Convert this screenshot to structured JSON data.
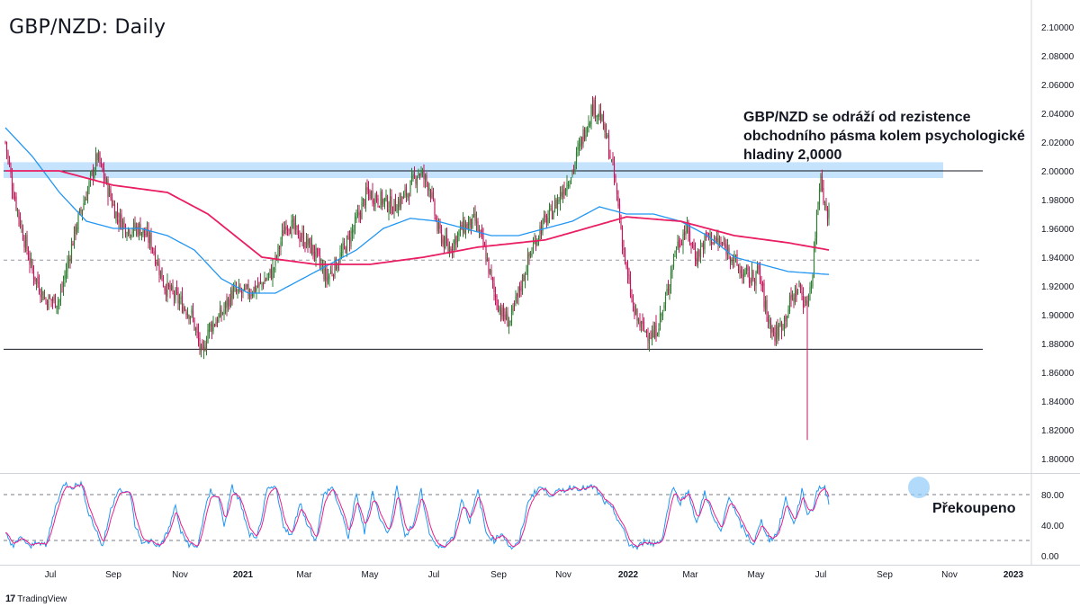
{
  "title": "GBP/NZD: Daily",
  "annotation": {
    "lines": [
      "GBP/NZD se odráží od rezistence",
      "obchodního pásma kolem psychologické",
      "hladiny 2,0000"
    ]
  },
  "stoch_annotation": "Překoupeno",
  "branding": {
    "logo": "17",
    "text": "TradingView"
  },
  "colors": {
    "up": "#2e7d32",
    "down": "#c2185b",
    "ma_fast": "#2196f3",
    "ma_slow": "#e91e63",
    "zone": "#bbdefb",
    "stoch_k": "#2196f3",
    "stoch_d": "#e91e8c",
    "highlight": "#90caf9"
  },
  "chart_data": {
    "type": "candlestick",
    "symbol": "GBP/NZD",
    "timeframe": "Daily",
    "x_labels": [
      "Jul",
      "Sep",
      "Nov",
      "2021",
      "Mar",
      "May",
      "Jul",
      "Sep",
      "Nov",
      "2022",
      "Mar",
      "May",
      "Jul",
      "Sep",
      "Nov",
      "2023"
    ],
    "y_ticks": [
      "2.10000",
      "2.08000",
      "2.06000",
      "2.04000",
      "2.02000",
      "2.00000",
      "1.98000",
      "1.96000",
      "1.94000",
      "1.92000",
      "1.90000",
      "1.88000",
      "1.86000",
      "1.84000",
      "1.82000",
      "1.80000"
    ],
    "ylim": [
      1.79,
      2.11
    ],
    "resistance_zone": [
      1.995,
      2.006
    ],
    "resistance_line": 2.0,
    "support_line": 1.876,
    "midline": 1.938,
    "price_anchors": [
      [
        0,
        2.02
      ],
      [
        5,
        1.99
      ],
      [
        12,
        1.96
      ],
      [
        20,
        1.93
      ],
      [
        30,
        1.91
      ],
      [
        40,
        1.91
      ],
      [
        52,
        1.96
      ],
      [
        62,
        1.99
      ],
      [
        68,
        2.01
      ],
      [
        75,
        1.99
      ],
      [
        82,
        1.97
      ],
      [
        90,
        1.96
      ],
      [
        100,
        1.96
      ],
      [
        108,
        1.95
      ],
      [
        118,
        1.92
      ],
      [
        128,
        1.91
      ],
      [
        138,
        1.9
      ],
      [
        146,
        1.87
      ],
      [
        150,
        1.89
      ],
      [
        160,
        1.9
      ],
      [
        168,
        1.915
      ],
      [
        178,
        1.915
      ],
      [
        188,
        1.92
      ],
      [
        198,
        1.93
      ],
      [
        208,
        1.965
      ],
      [
        218,
        1.955
      ],
      [
        228,
        1.945
      ],
      [
        238,
        1.925
      ],
      [
        248,
        1.94
      ],
      [
        258,
        1.96
      ],
      [
        268,
        1.985
      ],
      [
        278,
        1.98
      ],
      [
        288,
        1.975
      ],
      [
        298,
        1.985
      ],
      [
        306,
        2.0
      ],
      [
        314,
        1.99
      ],
      [
        320,
        1.96
      ],
      [
        328,
        1.945
      ],
      [
        338,
        1.96
      ],
      [
        348,
        1.965
      ],
      [
        355,
        1.945
      ],
      [
        362,
        1.915
      ],
      [
        368,
        1.9
      ],
      [
        374,
        1.895
      ],
      [
        380,
        1.915
      ],
      [
        388,
        1.94
      ],
      [
        396,
        1.96
      ],
      [
        404,
        1.97
      ],
      [
        412,
        1.985
      ],
      [
        420,
        2.0
      ],
      [
        428,
        2.025
      ],
      [
        435,
        2.045
      ],
      [
        440,
        2.04
      ],
      [
        446,
        2.02
      ],
      [
        452,
        1.99
      ],
      [
        456,
        1.96
      ],
      [
        460,
        1.93
      ],
      [
        466,
        1.9
      ],
      [
        472,
        1.89
      ],
      [
        480,
        1.885
      ],
      [
        488,
        1.905
      ],
      [
        496,
        1.945
      ],
      [
        504,
        1.96
      ],
      [
        512,
        1.94
      ],
      [
        520,
        1.955
      ],
      [
        528,
        1.95
      ],
      [
        536,
        1.945
      ],
      [
        544,
        1.93
      ],
      [
        552,
        1.925
      ],
      [
        558,
        1.93
      ],
      [
        564,
        1.9
      ],
      [
        570,
        1.885
      ],
      [
        576,
        1.895
      ],
      [
        582,
        1.91
      ],
      [
        588,
        1.92
      ],
      [
        593,
        1.905
      ],
      [
        598,
        1.93
      ],
      [
        601,
        1.97
      ],
      [
        604,
        2.0
      ],
      [
        607,
        1.975
      ],
      [
        610,
        1.97
      ]
    ],
    "spike_low": {
      "bar": 594,
      "value": 1.813
    },
    "ma_fast_anchors": [
      [
        0,
        2.03
      ],
      [
        20,
        2.01
      ],
      [
        40,
        1.985
      ],
      [
        60,
        1.965
      ],
      [
        80,
        1.96
      ],
      [
        100,
        1.96
      ],
      [
        120,
        1.955
      ],
      [
        140,
        1.945
      ],
      [
        160,
        1.925
      ],
      [
        180,
        1.915
      ],
      [
        200,
        1.915
      ],
      [
        220,
        1.925
      ],
      [
        240,
        1.935
      ],
      [
        260,
        1.945
      ],
      [
        280,
        1.96
      ],
      [
        300,
        1.967
      ],
      [
        320,
        1.965
      ],
      [
        340,
        1.96
      ],
      [
        360,
        1.955
      ],
      [
        380,
        1.955
      ],
      [
        400,
        1.96
      ],
      [
        420,
        1.965
      ],
      [
        440,
        1.975
      ],
      [
        460,
        1.97
      ],
      [
        480,
        1.97
      ],
      [
        500,
        1.965
      ],
      [
        520,
        1.955
      ],
      [
        540,
        1.94
      ],
      [
        560,
        1.935
      ],
      [
        580,
        1.93
      ],
      [
        610,
        1.928
      ]
    ],
    "ma_slow_anchors": [
      [
        0,
        2.0
      ],
      [
        40,
        2.0
      ],
      [
        80,
        1.99
      ],
      [
        120,
        1.985
      ],
      [
        150,
        1.97
      ],
      [
        170,
        1.955
      ],
      [
        190,
        1.94
      ],
      [
        230,
        1.935
      ],
      [
        270,
        1.935
      ],
      [
        310,
        1.94
      ],
      [
        350,
        1.947
      ],
      [
        400,
        1.952
      ],
      [
        430,
        1.96
      ],
      [
        460,
        1.968
      ],
      [
        500,
        1.965
      ],
      [
        540,
        1.955
      ],
      [
        580,
        1.95
      ],
      [
        610,
        1.945
      ]
    ],
    "stochastic": {
      "yticks": [
        "80.00",
        "40.00",
        "0.00"
      ],
      "levels": [
        80,
        20
      ],
      "ylim": [
        -5,
        105
      ],
      "anchors": [
        [
          0,
          30
        ],
        [
          6,
          12
        ],
        [
          12,
          25
        ],
        [
          18,
          10
        ],
        [
          24,
          20
        ],
        [
          30,
          12
        ],
        [
          38,
          70
        ],
        [
          44,
          95
        ],
        [
          50,
          90
        ],
        [
          56,
          95
        ],
        [
          62,
          55
        ],
        [
          68,
          30
        ],
        [
          72,
          12
        ],
        [
          78,
          60
        ],
        [
          84,
          90
        ],
        [
          88,
          80
        ],
        [
          92,
          85
        ],
        [
          96,
          40
        ],
        [
          102,
          15
        ],
        [
          108,
          20
        ],
        [
          114,
          12
        ],
        [
          120,
          30
        ],
        [
          126,
          65
        ],
        [
          130,
          30
        ],
        [
          136,
          15
        ],
        [
          142,
          10
        ],
        [
          148,
          60
        ],
        [
          152,
          85
        ],
        [
          158,
          75
        ],
        [
          162,
          40
        ],
        [
          168,
          90
        ],
        [
          174,
          70
        ],
        [
          180,
          30
        ],
        [
          186,
          20
        ],
        [
          194,
          85
        ],
        [
          200,
          90
        ],
        [
          206,
          40
        ],
        [
          212,
          25
        ],
        [
          218,
          70
        ],
        [
          224,
          40
        ],
        [
          230,
          20
        ],
        [
          236,
          80
        ],
        [
          242,
          90
        ],
        [
          248,
          60
        ],
        [
          254,
          25
        ],
        [
          260,
          80
        ],
        [
          266,
          30
        ],
        [
          272,
          85
        ],
        [
          278,
          45
        ],
        [
          284,
          30
        ],
        [
          290,
          90
        ],
        [
          296,
          25
        ],
        [
          302,
          40
        ],
        [
          308,
          85
        ],
        [
          314,
          30
        ],
        [
          320,
          10
        ],
        [
          326,
          15
        ],
        [
          332,
          25
        ],
        [
          338,
          75
        ],
        [
          344,
          45
        ],
        [
          350,
          85
        ],
        [
          356,
          30
        ],
        [
          362,
          20
        ],
        [
          368,
          30
        ],
        [
          374,
          10
        ],
        [
          380,
          15
        ],
        [
          388,
          75
        ],
        [
          396,
          90
        ],
        [
          404,
          80
        ],
        [
          412,
          85
        ],
        [
          420,
          90
        ],
        [
          428,
          88
        ],
        [
          436,
          90
        ],
        [
          444,
          70
        ],
        [
          450,
          60
        ],
        [
          456,
          40
        ],
        [
          462,
          15
        ],
        [
          468,
          10
        ],
        [
          474,
          20
        ],
        [
          480,
          15
        ],
        [
          486,
          20
        ],
        [
          494,
          90
        ],
        [
          500,
          70
        ],
        [
          506,
          85
        ],
        [
          512,
          40
        ],
        [
          518,
          85
        ],
        [
          524,
          50
        ],
        [
          530,
          30
        ],
        [
          536,
          80
        ],
        [
          542,
          50
        ],
        [
          548,
          30
        ],
        [
          554,
          15
        ],
        [
          560,
          45
        ],
        [
          566,
          20
        ],
        [
          572,
          30
        ],
        [
          578,
          75
        ],
        [
          584,
          40
        ],
        [
          590,
          85
        ],
        [
          594,
          55
        ],
        [
          598,
          60
        ],
        [
          601,
          85
        ],
        [
          604,
          90
        ],
        [
          607,
          88
        ],
        [
          610,
          70
        ]
      ]
    }
  }
}
